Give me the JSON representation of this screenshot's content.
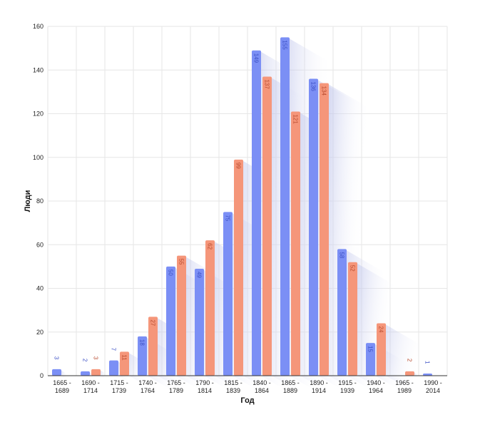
{
  "chart_data": {
    "type": "bar",
    "xlabel": "Год",
    "ylabel": "Люди",
    "ylim": [
      0,
      160
    ],
    "yticks": [
      0,
      20,
      40,
      60,
      80,
      100,
      120,
      140,
      160
    ],
    "grid": true,
    "categories": [
      [
        "1665 -",
        "1689"
      ],
      [
        "1690 -",
        "1714"
      ],
      [
        "1715 -",
        "1739"
      ],
      [
        "1740 -",
        "1764"
      ],
      [
        "1765 -",
        "1789"
      ],
      [
        "1790 -",
        "1814"
      ],
      [
        "1815 -",
        "1839"
      ],
      [
        "1840 -",
        "1864"
      ],
      [
        "1865 -",
        "1889"
      ],
      [
        "1890 -",
        "1914"
      ],
      [
        "1915 -",
        "1939"
      ],
      [
        "1940 -",
        "1964"
      ],
      [
        "1965 -",
        "1989"
      ],
      [
        "1990 -",
        "2014"
      ]
    ],
    "series": [
      {
        "color": "#7b8ff5",
        "labelColor": "#3b4fc4",
        "values": [
          3,
          2,
          7,
          18,
          50,
          49,
          75,
          149,
          155,
          136,
          58,
          15,
          null,
          1
        ]
      },
      {
        "color": "#f5967a",
        "labelColor": "#b84a2e",
        "values": [
          null,
          3,
          11,
          27,
          55,
          62,
          99,
          137,
          121,
          134,
          52,
          24,
          2,
          null
        ]
      }
    ]
  }
}
